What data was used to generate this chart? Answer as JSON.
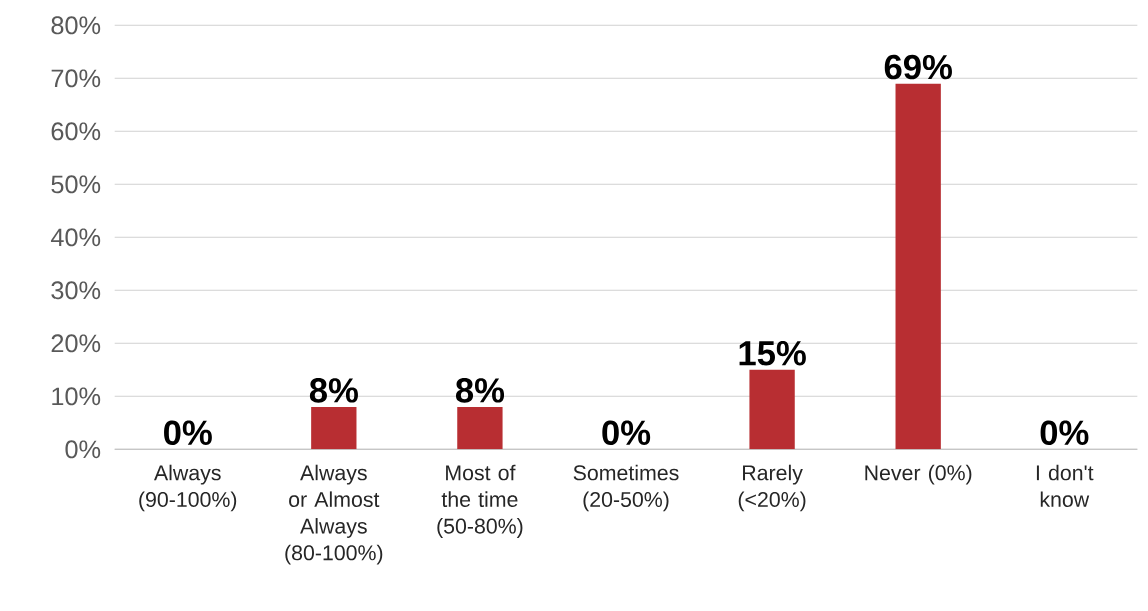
{
  "chart_data": {
    "type": "bar",
    "categories": [
      "Always (90-100%)",
      "Always or Almost Always (80-100%)",
      "Most of the time (50-80%)",
      "Sometimes (20-50%)",
      "Rarely (<20%)",
      "Never (0%)",
      "I don't know"
    ],
    "values": [
      0,
      8,
      8,
      0,
      15,
      69,
      0
    ],
    "value_labels": [
      "0%",
      "8%",
      "8%",
      "0%",
      "15%",
      "69%",
      "0%"
    ],
    "color": "#b82e32",
    "ylim": [
      0,
      80
    ],
    "yticks": [
      {
        "value": 0,
        "label": "0%"
      },
      {
        "value": 10,
        "label": "10%"
      },
      {
        "value": 20,
        "label": "20%"
      },
      {
        "value": 30,
        "label": "30%"
      },
      {
        "value": 40,
        "label": "40%"
      },
      {
        "value": 50,
        "label": "50%"
      },
      {
        "value": 60,
        "label": "60%"
      },
      {
        "value": 70,
        "label": "70%"
      },
      {
        "value": 80,
        "label": "80%"
      }
    ],
    "grid": "y"
  }
}
